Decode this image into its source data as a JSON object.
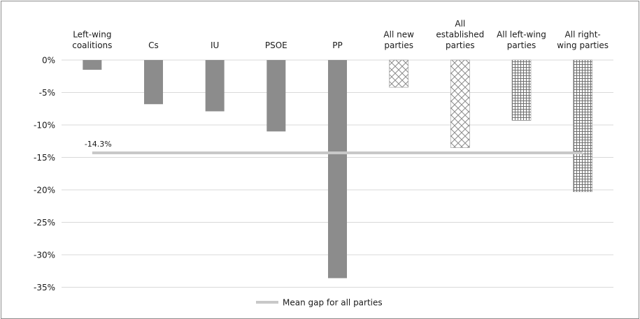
{
  "chart_data": {
    "type": "bar",
    "categories": [
      [
        "Left-wing",
        "coalitions"
      ],
      [
        "Cs"
      ],
      [
        "IU"
      ],
      [
        "PSOE"
      ],
      [
        "PP"
      ],
      [
        "All new",
        "parties"
      ],
      [
        "All",
        "established",
        "parties"
      ],
      [
        "All left-wing",
        "parties"
      ],
      [
        "All right-",
        "wing parties"
      ]
    ],
    "values": [
      -1.5,
      -6.8,
      -7.9,
      -11.0,
      -33.6,
      -4.2,
      -13.5,
      -9.3,
      -20.3
    ],
    "bar_styles": [
      "solid",
      "solid",
      "solid",
      "solid",
      "solid",
      "diamond",
      "diamond",
      "grid",
      "grid"
    ],
    "ylim": [
      -35,
      0
    ],
    "yticks": [
      0,
      -5,
      -10,
      -15,
      -20,
      -25,
      -30,
      -35
    ],
    "ytick_labels": [
      "0%",
      "-5%",
      "-10%",
      "-15%",
      "-20%",
      "-25%",
      "-30%",
      "-35%"
    ],
    "mean_line": {
      "value": -14.3,
      "label": "-14.3%"
    },
    "legend": {
      "position": "bottom",
      "label": "Mean gap for all parties"
    },
    "grid": true,
    "colors": {
      "bar": "#8c8c8c",
      "mean_line": "#c8c8c8",
      "grid": "#d9d9d9",
      "pattern": "#7f7f7f"
    }
  }
}
